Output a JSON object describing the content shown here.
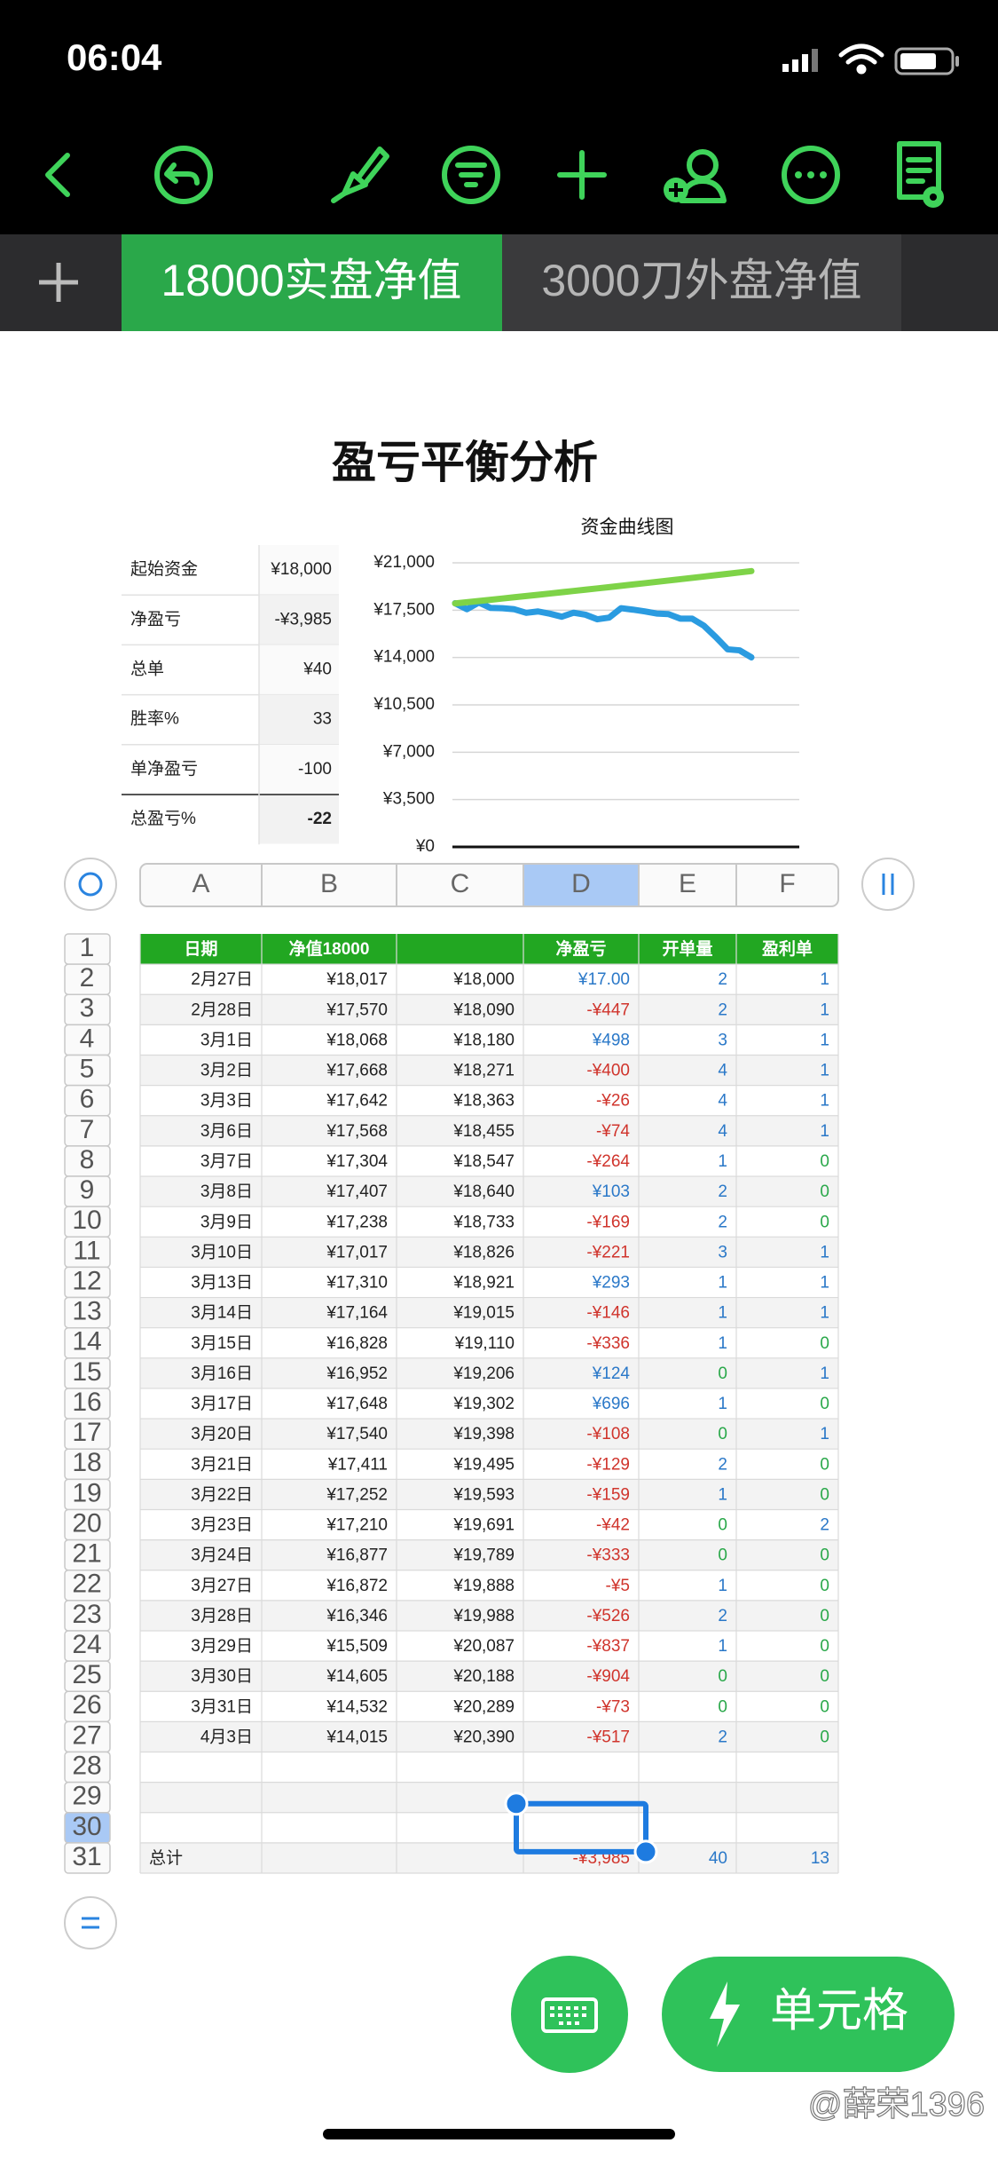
{
  "status_bar": {
    "time": "06:04"
  },
  "tabs": [
    "18000实盘净值",
    "3000刀外盘净值"
  ],
  "sheet": {
    "title": "盈亏平衡分析"
  },
  "summary_table": {
    "rows": [
      [
        "起始资金",
        "¥18,000"
      ],
      [
        "净盈亏",
        "-¥3,985"
      ],
      [
        "总单",
        "¥40"
      ],
      [
        "胜率%",
        "33"
      ],
      [
        "单净盈亏",
        "-100"
      ],
      [
        "总盈亏%",
        "-22"
      ]
    ]
  },
  "chart_data": {
    "type": "line",
    "title": "资金曲线图",
    "categories": [
      "2月27日",
      "2月28日",
      "3月1日",
      "3月2日",
      "3月3日",
      "3月6日",
      "3月7日",
      "3月8日",
      "3月9日",
      "3月10日",
      "3月13日",
      "3月14日",
      "3月15日",
      "3月16日",
      "3月17日",
      "3月20日",
      "3月21日",
      "3月22日",
      "3月23日",
      "3月24日",
      "3月27日",
      "3月28日",
      "3月29日",
      "3月30日",
      "3月31日",
      "4月3日"
    ],
    "series": [
      {
        "color": "#2a9be0",
        "values": [
          18017,
          17570,
          18068,
          17668,
          17642,
          17568,
          17304,
          17407,
          17238,
          17017,
          17310,
          17164,
          16828,
          16952,
          17648,
          17540,
          17411,
          17252,
          17210,
          16877,
          16872,
          16346,
          15509,
          14605,
          14532,
          14015
        ]
      },
      {
        "color": "#7ed348",
        "values": [
          18000,
          18090,
          18180,
          18271,
          18363,
          18455,
          18547,
          18640,
          18733,
          18826,
          18921,
          19015,
          19110,
          19206,
          19302,
          19398,
          19495,
          19593,
          19691,
          19789,
          19888,
          19988,
          20087,
          20188,
          20289,
          20390
        ]
      }
    ],
    "ylim": [
      0,
      21000
    ],
    "yticks": [
      {
        "value": 0,
        "label": "¥0"
      },
      {
        "value": 3500,
        "label": "¥3,500"
      },
      {
        "value": 7000,
        "label": "¥7,000"
      },
      {
        "value": 10500,
        "label": "¥10,500"
      },
      {
        "value": 14000,
        "label": "¥14,000"
      },
      {
        "value": 17500,
        "label": "¥17,500"
      },
      {
        "value": 21000,
        "label": "¥21,000"
      }
    ],
    "grid": true
  },
  "columns": [
    "A",
    "B",
    "C",
    "D",
    "E",
    "F"
  ],
  "row_numbers": [
    1,
    2,
    3,
    4,
    5,
    6,
    7,
    8,
    9,
    10,
    11,
    12,
    13,
    14,
    15,
    16,
    17,
    18,
    19,
    20,
    21,
    22,
    23,
    24,
    25,
    26,
    27,
    28,
    29,
    30,
    31
  ],
  "table": {
    "header": {
      "A": "日期",
      "B": "净值18000",
      "D": "净盈亏",
      "E": "开单量",
      "F": "盈利单"
    },
    "rows": [
      [
        "¥18,017",
        "¥18,000",
        "¥17.00",
        "2",
        "1"
      ],
      [
        "¥17,570",
        "¥18,090",
        "-¥447",
        "2",
        "1"
      ],
      [
        "¥18,068",
        "¥18,180",
        "¥498",
        "3",
        "1"
      ],
      [
        "¥17,668",
        "¥18,271",
        "-¥400",
        "4",
        "1"
      ],
      [
        "¥17,642",
        "¥18,363",
        "-¥26",
        "4",
        "1"
      ],
      [
        "¥17,568",
        "¥18,455",
        "-¥74",
        "4",
        "1"
      ],
      [
        "¥17,304",
        "¥18,547",
        "-¥264",
        "1",
        "0"
      ],
      [
        "¥17,407",
        "¥18,640",
        "¥103",
        "2",
        "0"
      ],
      [
        "¥17,238",
        "¥18,733",
        "-¥169",
        "2",
        "0"
      ],
      [
        "¥17,017",
        "¥18,826",
        "-¥221",
        "3",
        "1"
      ],
      [
        "¥17,310",
        "¥18,921",
        "¥293",
        "1",
        "1"
      ],
      [
        "¥17,164",
        "¥19,015",
        "-¥146",
        "1",
        "1"
      ],
      [
        "¥16,828",
        "¥19,110",
        "-¥336",
        "1",
        "0"
      ],
      [
        "¥16,952",
        "¥19,206",
        "¥124",
        "0",
        "1"
      ],
      [
        "¥17,648",
        "¥19,302",
        "¥696",
        "1",
        "0"
      ],
      [
        "¥17,540",
        "¥19,398",
        "-¥108",
        "0",
        "1"
      ],
      [
        "¥17,411",
        "¥19,495",
        "-¥129",
        "2",
        "0"
      ],
      [
        "¥17,252",
        "¥19,593",
        "-¥159",
        "1",
        "0"
      ],
      [
        "¥17,210",
        "¥19,691",
        "-¥42",
        "0",
        "2"
      ],
      [
        "¥16,877",
        "¥19,789",
        "-¥333",
        "0",
        "0"
      ],
      [
        "¥16,872",
        "¥19,888",
        "-¥5",
        "1",
        "0"
      ],
      [
        "¥16,346",
        "¥19,988",
        "-¥526",
        "2",
        "0"
      ],
      [
        "¥15,509",
        "¥20,087",
        "-¥837",
        "1",
        "0"
      ],
      [
        "¥14,605",
        "¥20,188",
        "-¥904",
        "0",
        "0"
      ],
      [
        "¥14,532",
        "¥20,289",
        "-¥73",
        "0",
        "0"
      ],
      [
        "¥14,015",
        "¥20,390",
        "-¥517",
        "2",
        "0"
      ]
    ],
    "total": {
      "A": "总计",
      "D": "-¥3,985",
      "E": "40",
      "F": "13"
    }
  },
  "buttons": {
    "cell": "单元格"
  },
  "watermark": "@薛荣1396"
}
